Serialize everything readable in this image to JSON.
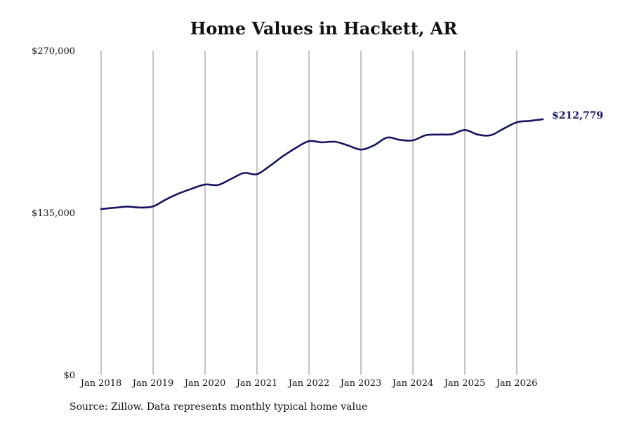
{
  "chart_data": {
    "type": "line",
    "title": "Home Values in Hackett, AR",
    "source": "Source: Zillow. Data represents monthly typical home value",
    "xlabel": "",
    "ylabel": "",
    "ylim": [
      0,
      270000
    ],
    "yticks": [
      0,
      135000,
      270000
    ],
    "ytick_labels": [
      "$0",
      "$135,000",
      "$270,000"
    ],
    "xticks": [
      "Jan 2018",
      "Jan 2019",
      "Jan 2020",
      "Jan 2021",
      "Jan 2022",
      "Jan 2023",
      "Jan 2024",
      "Jan 2025",
      "Jan 2026"
    ],
    "grid": "vertical",
    "line_color": "#151460",
    "series": [
      {
        "x": [
          "2018-01",
          "2018-04",
          "2018-07",
          "2018-10",
          "2019-01",
          "2019-04",
          "2019-07",
          "2019-10",
          "2020-01",
          "2020-04",
          "2020-07",
          "2020-10",
          "2021-01",
          "2021-04",
          "2021-07",
          "2021-10",
          "2022-01",
          "2022-04",
          "2022-07",
          "2022-10",
          "2023-01",
          "2023-04",
          "2023-07",
          "2023-10",
          "2024-01",
          "2024-04",
          "2024-07",
          "2024-10",
          "2025-01",
          "2025-04",
          "2025-07",
          "2025-10",
          "2026-01",
          "2026-04",
          "2026-07"
        ],
        "values": [
          138000,
          139000,
          140000,
          139200,
          140200,
          146000,
          151000,
          155000,
          158400,
          158000,
          163000,
          168000,
          167000,
          174000,
          182000,
          189000,
          194500,
          193500,
          194000,
          191000,
          187500,
          191000,
          197500,
          195600,
          195200,
          199500,
          200000,
          200300,
          203800,
          200000,
          199500,
          205000,
          210300,
          211400,
          212779
        ]
      }
    ],
    "end_label": "$212,779"
  }
}
